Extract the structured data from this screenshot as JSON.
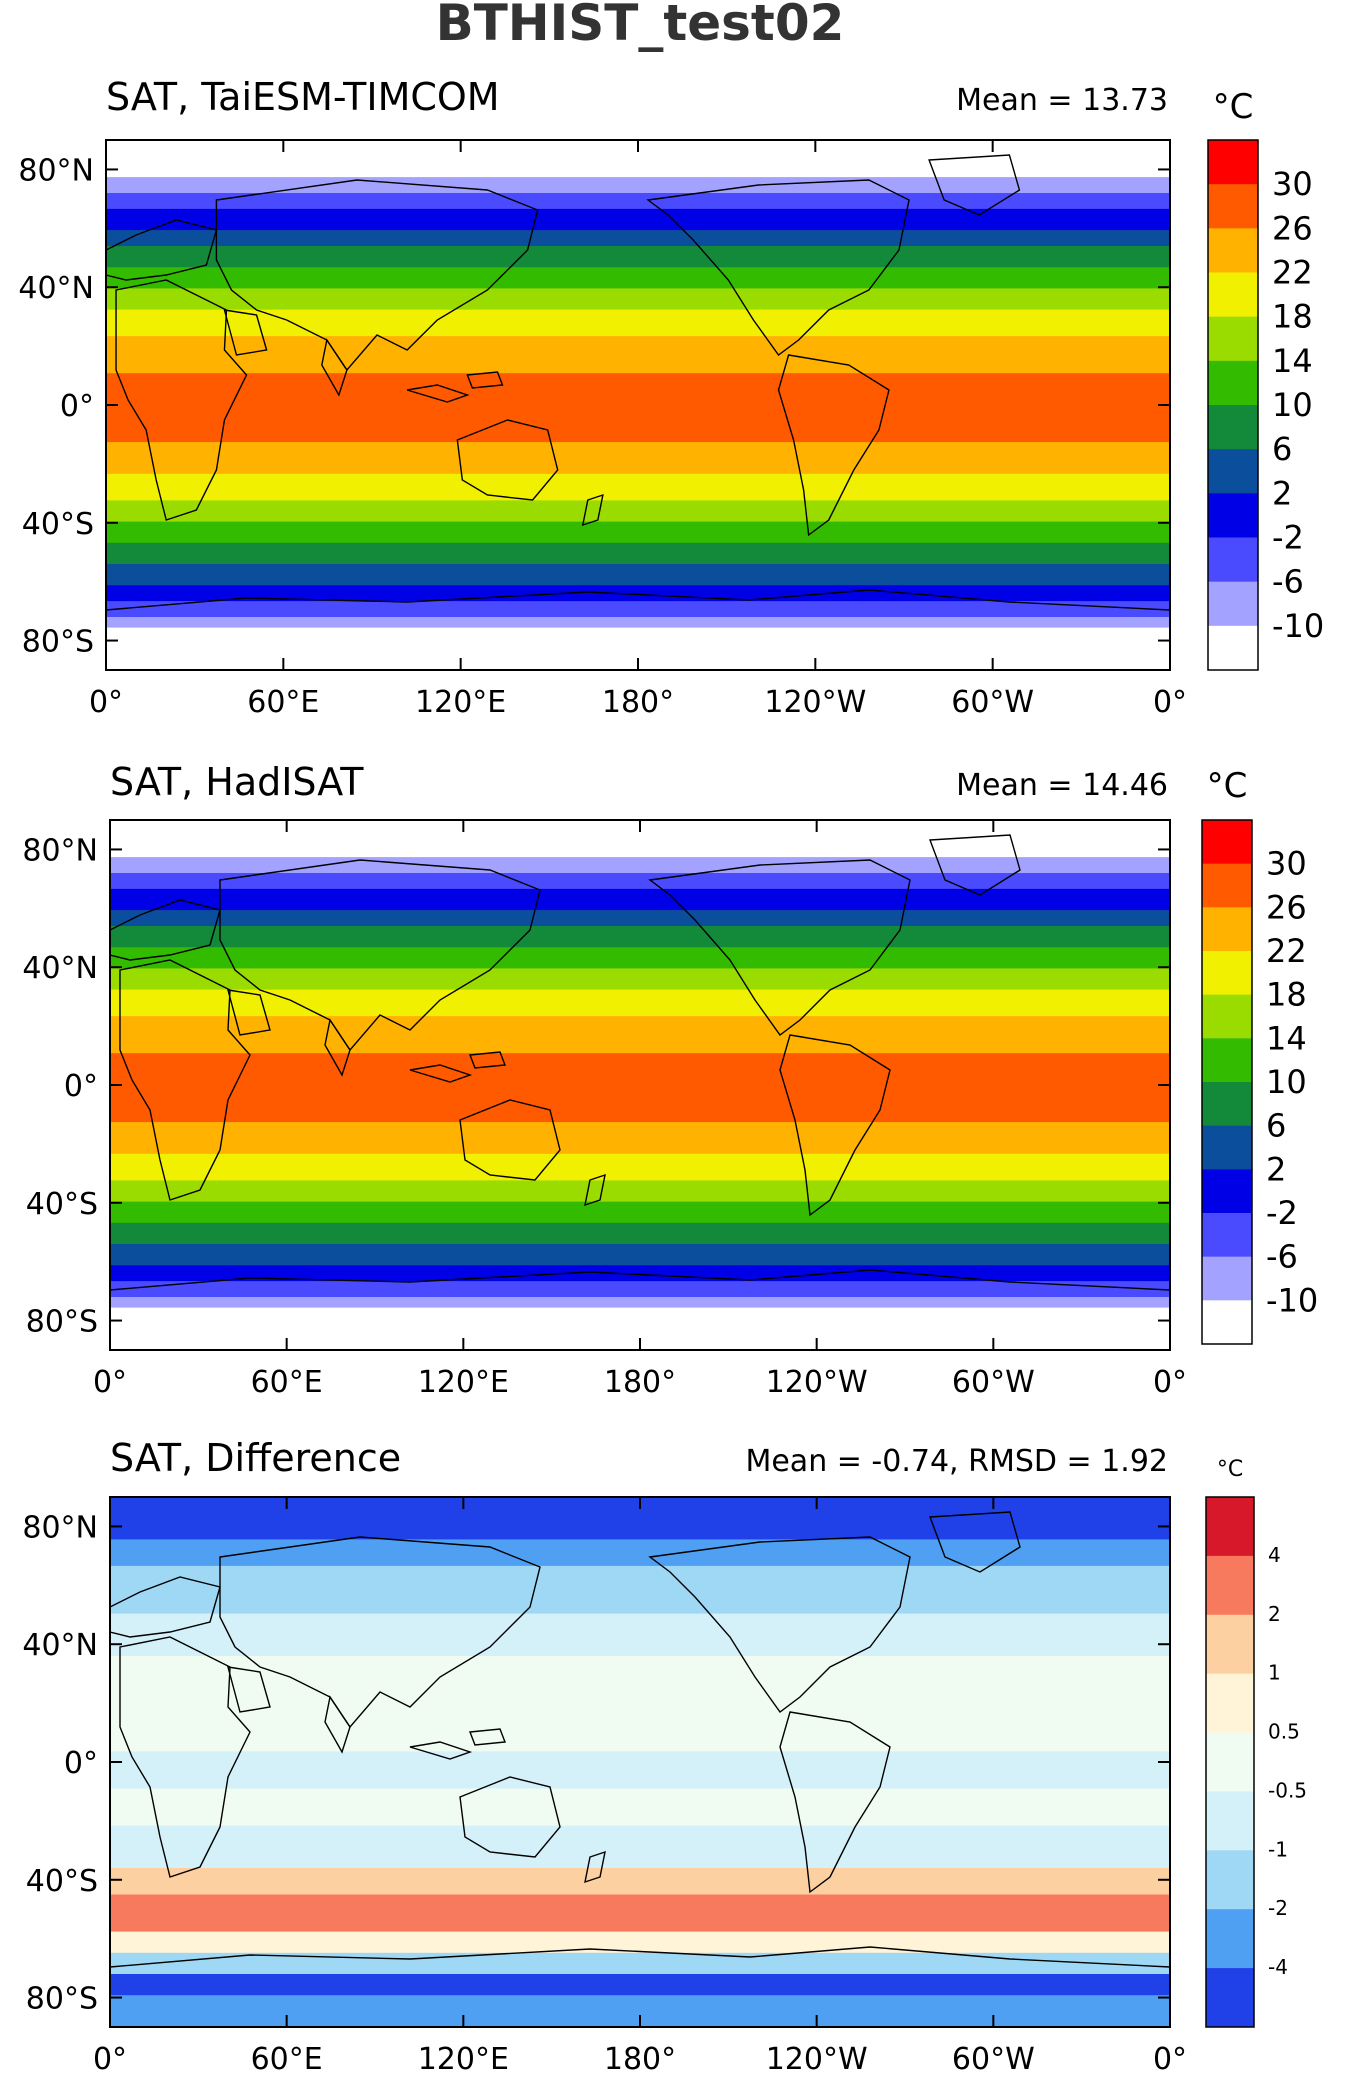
{
  "figure_title": "BTHIST_test02",
  "units": "°C",
  "x_ticks": [
    "0°",
    "60°E",
    "120°E",
    "180°",
    "120°W",
    "60°W",
    "0°"
  ],
  "y_ticks": [
    "80°N",
    "40°N",
    "0°",
    "40°S",
    "80°S"
  ],
  "panels": [
    {
      "title": "SAT, TaiESM-TIMCOM",
      "stat": "Mean = 13.73",
      "colorbar": {
        "levels": [
          "30",
          "26",
          "22",
          "18",
          "14",
          "10",
          "6",
          "2",
          "-2",
          "-6",
          "-10"
        ],
        "colors": [
          "#ff0000",
          "#ff5a00",
          "#ffb300",
          "#f0f000",
          "#9bdc00",
          "#33bb00",
          "#128a3a",
          "#0b4f9c",
          "#0000e6",
          "#4a4aff",
          "#a3a3ff",
          "#ffffff"
        ]
      }
    },
    {
      "title": "SAT, HadISAT",
      "stat": "Mean = 14.46",
      "colorbar": {
        "levels": [
          "30",
          "26",
          "22",
          "18",
          "14",
          "10",
          "6",
          "2",
          "-2",
          "-6",
          "-10"
        ],
        "colors": [
          "#ff0000",
          "#ff5a00",
          "#ffb300",
          "#f0f000",
          "#9bdc00",
          "#33bb00",
          "#128a3a",
          "#0b4f9c",
          "#0000e6",
          "#4a4aff",
          "#a3a3ff",
          "#ffffff"
        ]
      }
    },
    {
      "title": "SAT, Difference",
      "stat": "Mean = -0.74, RMSD = 1.92",
      "colorbar": {
        "levels": [
          "4",
          "2",
          "1",
          "0.5",
          "-0.5",
          "-1",
          "-2",
          "-4"
        ],
        "colors": [
          "#d7182a",
          "#f87a5e",
          "#fdd0a2",
          "#fff4d8",
          "#f0fbf2",
          "#d4f0f8",
          "#9ed8f5",
          "#4f9ff2",
          "#2040e8"
        ]
      }
    }
  ]
}
